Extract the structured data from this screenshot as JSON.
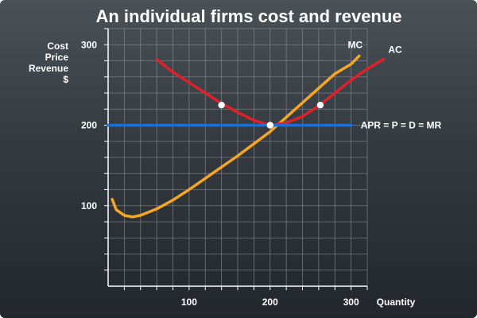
{
  "chart_data": {
    "type": "line",
    "title": "An individual firms cost  and revenue",
    "xlabel": "Quantity",
    "ylabel_lines": [
      "Cost",
      "Price",
      "Revenue",
      "$"
    ],
    "xlim": [
      0,
      320
    ],
    "ylim": [
      0,
      320
    ],
    "x_ticks": [
      100,
      200,
      300
    ],
    "y_ticks": [
      100,
      200,
      300
    ],
    "grid": true,
    "series": [
      {
        "name": "MC",
        "color": "#f5a623",
        "x": [
          5,
          10,
          20,
          30,
          40,
          60,
          80,
          100,
          120,
          140,
          160,
          180,
          200,
          220,
          240,
          260,
          280,
          300,
          310
        ],
        "y": [
          108,
          95,
          88,
          86,
          88,
          96,
          107,
          120,
          134,
          148,
          162,
          177,
          192,
          210,
          228,
          246,
          264,
          276,
          286
        ]
      },
      {
        "name": "AC",
        "color": "#e0202a",
        "x": [
          60,
          80,
          100,
          120,
          140,
          160,
          180,
          200,
          220,
          240,
          260,
          280,
          300,
          320,
          340
        ],
        "y": [
          282,
          266,
          253,
          240,
          227,
          216,
          206,
          200,
          203,
          211,
          224,
          240,
          256,
          270,
          282
        ]
      },
      {
        "name": "APR = P = D = MR",
        "color": "#1d6fd0",
        "x": [
          0,
          300
        ],
        "y": [
          200,
          200
        ]
      }
    ],
    "points": [
      {
        "x": 140,
        "y": 225
      },
      {
        "x": 200,
        "y": 200
      },
      {
        "x": 262,
        "y": 225
      }
    ]
  }
}
